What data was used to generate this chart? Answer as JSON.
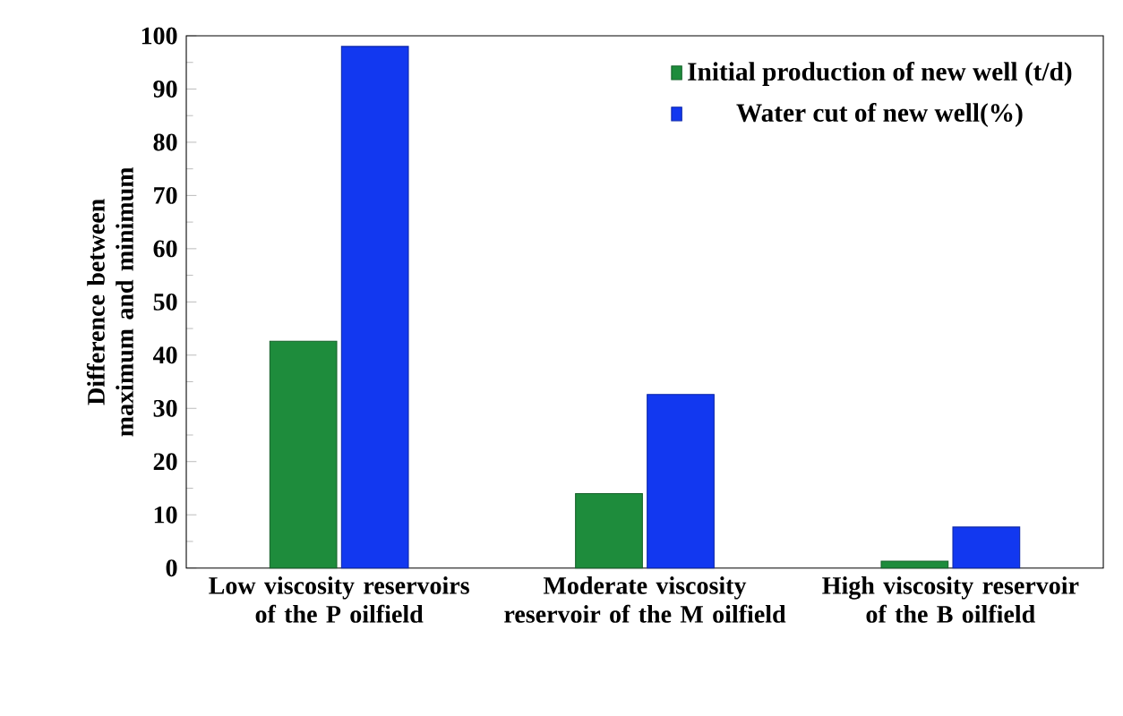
{
  "chart_data": {
    "type": "bar",
    "ylabel": "Difference between maximum and minimum",
    "categories": [
      "Low viscosity reservoirs of the P oilfield",
      "Moderate viscosity reservoir of the M oilfield",
      "High viscosity reservoir of the B oilfield"
    ],
    "series": [
      {
        "name": "Initial production of new well (t/d)",
        "color": "#1e8c3c",
        "values": [
          42.6,
          14.0,
          1.3
        ]
      },
      {
        "name": "Water cut of new well(%)",
        "color": "#1238f0",
        "values": [
          98.0,
          32.6,
          7.7
        ]
      }
    ],
    "ylim": [
      0,
      100
    ],
    "yticks": [
      0,
      10,
      20,
      30,
      40,
      50,
      60,
      70,
      80,
      90,
      100
    ],
    "legend": "top right",
    "grid": false
  }
}
